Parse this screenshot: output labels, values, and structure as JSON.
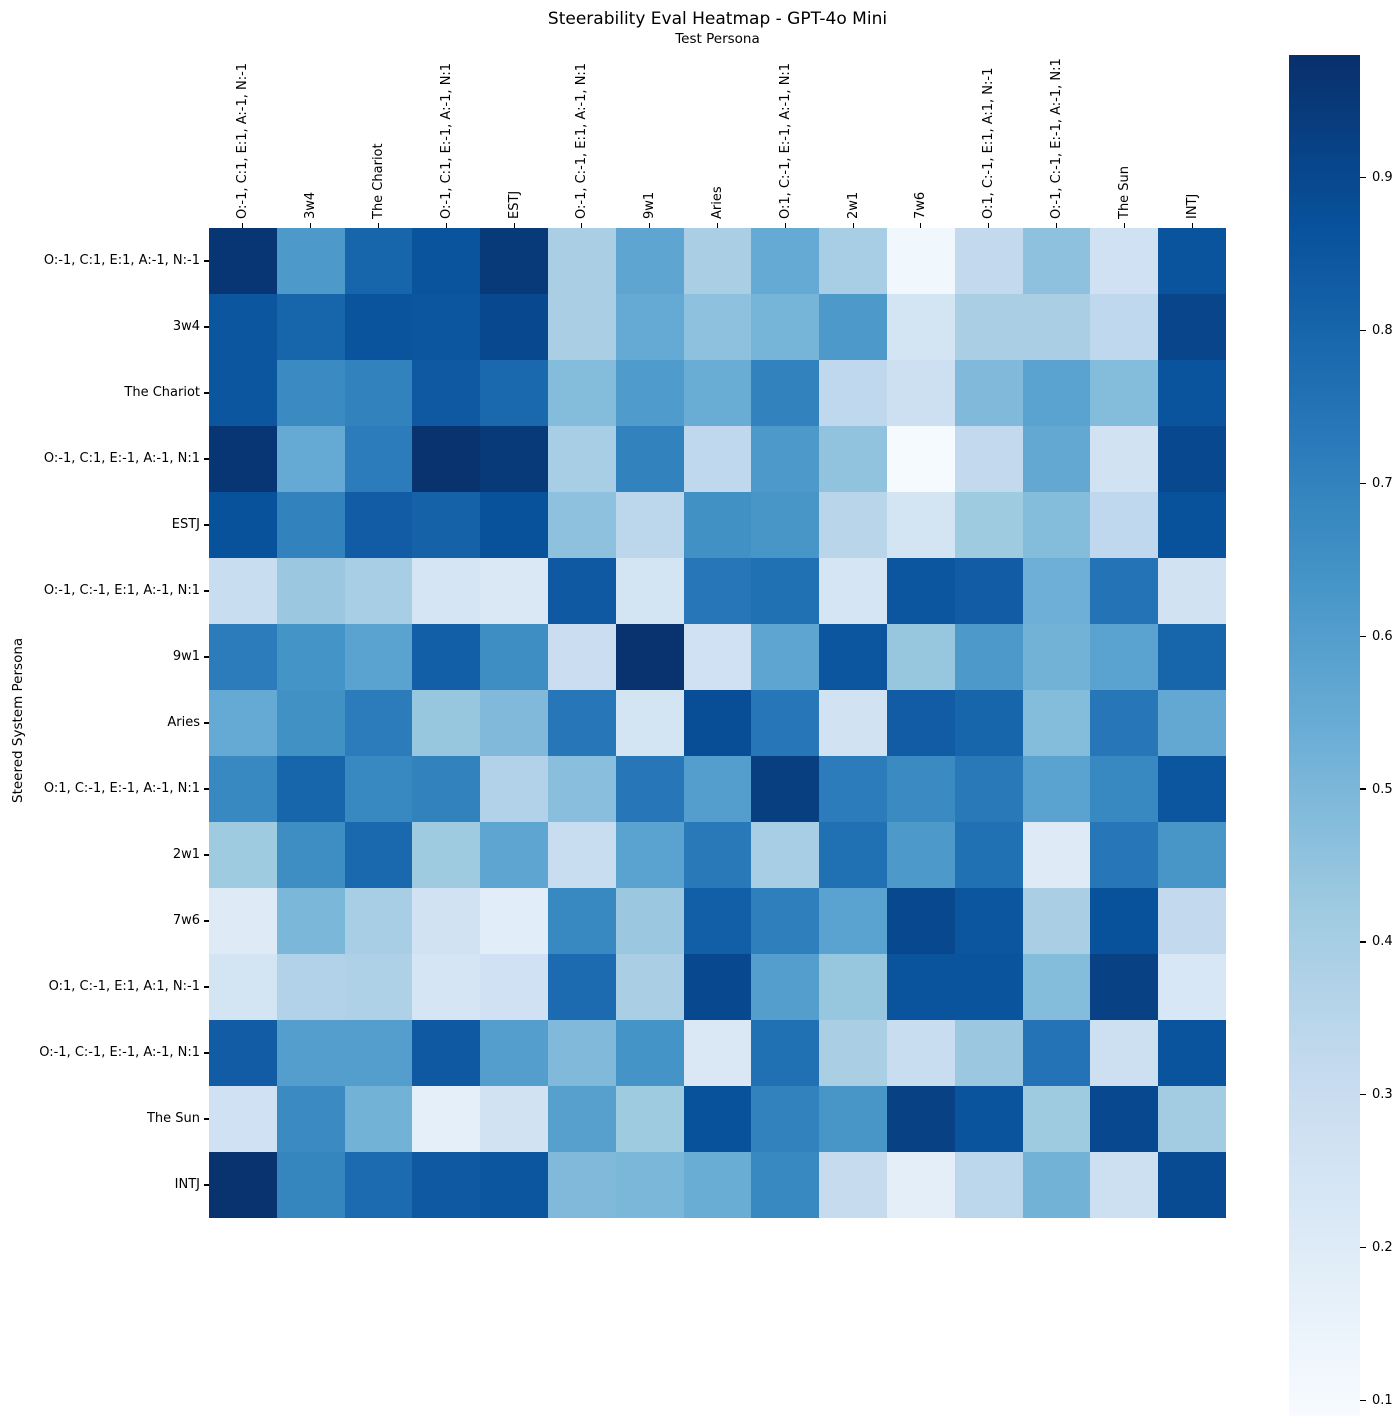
{
  "chart_data": {
    "type": "heatmap",
    "title": "Steerability Eval Heatmap - GPT-4o Mini",
    "xlabel": "Test Persona",
    "ylabel": "Steered System Persona",
    "colormap": "Blues",
    "colormap_stops": [
      [
        0.0,
        [
          247,
          251,
          255
        ]
      ],
      [
        0.125,
        [
          222,
          235,
          247
        ]
      ],
      [
        0.25,
        [
          198,
          219,
          239
        ]
      ],
      [
        0.375,
        [
          158,
          202,
          225
        ]
      ],
      [
        0.5,
        [
          107,
          174,
          214
        ]
      ],
      [
        0.625,
        [
          66,
          146,
          198
        ]
      ],
      [
        0.75,
        [
          33,
          113,
          181
        ]
      ],
      [
        0.875,
        [
          8,
          81,
          156
        ]
      ],
      [
        1.0,
        [
          8,
          48,
          107
        ]
      ]
    ],
    "vmin": 0.09,
    "vmax": 0.98,
    "colorbar_ticks": [
      0.9,
      0.8,
      0.7,
      0.6,
      0.5,
      0.4,
      0.3,
      0.2,
      0.1
    ],
    "colorbar_tick_labels": [
      "0.9",
      "0.8",
      "0.7",
      "0.6",
      "0.5",
      "0.4",
      "0.3",
      "0.2",
      "0.1"
    ],
    "columns": [
      "O:-1, C:1, E:1, A:-1, N:-1",
      "3w4",
      "The Chariot",
      "O:-1, C:1, E:-1, A:-1, N:1",
      "ESTJ",
      "O:-1, C:-1, E:1, A:-1, N:1",
      "9w1",
      "Aries",
      "O:1, C:-1, E:-1, A:-1, N:1",
      "2w1",
      "7w6",
      "O:1, C:-1, E:1, A:1, N:-1",
      "O:-1, C:-1, E:-1, A:-1, N:1",
      "The Sun",
      "INTJ"
    ],
    "rows": [
      "O:-1, C:1, E:1, A:-1, N:-1",
      "3w4",
      "The Chariot",
      "O:-1, C:1, E:-1, A:-1, N:1",
      "ESTJ",
      "O:-1, C:-1, E:1, A:-1, N:1",
      "9w1",
      "Aries",
      "O:1, C:-1, E:-1, A:-1, N:1",
      "2w1",
      "7w6",
      "O:1, C:-1, E:1, A:1, N:-1",
      "O:-1, C:-1, E:-1, A:-1, N:1",
      "The Sun",
      "INTJ"
    ],
    "values": [
      [
        0.96,
        0.62,
        0.8,
        0.86,
        0.95,
        0.39,
        0.57,
        0.39,
        0.55,
        0.4,
        0.12,
        0.32,
        0.46,
        0.27,
        0.86
      ],
      [
        0.85,
        0.8,
        0.86,
        0.85,
        0.9,
        0.39,
        0.55,
        0.46,
        0.51,
        0.62,
        0.25,
        0.39,
        0.39,
        0.33,
        0.91
      ],
      [
        0.85,
        0.67,
        0.7,
        0.84,
        0.79,
        0.48,
        0.61,
        0.54,
        0.7,
        0.33,
        0.28,
        0.49,
        0.58,
        0.48,
        0.86
      ],
      [
        0.96,
        0.55,
        0.72,
        0.97,
        0.95,
        0.4,
        0.7,
        0.33,
        0.62,
        0.45,
        0.1,
        0.32,
        0.56,
        0.26,
        0.9
      ],
      [
        0.87,
        0.7,
        0.83,
        0.81,
        0.87,
        0.46,
        0.34,
        0.65,
        0.63,
        0.35,
        0.25,
        0.42,
        0.48,
        0.33,
        0.87
      ],
      [
        0.3,
        0.43,
        0.4,
        0.24,
        0.22,
        0.84,
        0.25,
        0.74,
        0.76,
        0.24,
        0.85,
        0.83,
        0.53,
        0.75,
        0.26
      ],
      [
        0.72,
        0.64,
        0.58,
        0.82,
        0.66,
        0.29,
        0.97,
        0.27,
        0.57,
        0.85,
        0.44,
        0.62,
        0.52,
        0.58,
        0.8
      ],
      [
        0.55,
        0.65,
        0.72,
        0.44,
        0.49,
        0.74,
        0.25,
        0.88,
        0.74,
        0.26,
        0.83,
        0.8,
        0.48,
        0.74,
        0.56
      ],
      [
        0.68,
        0.8,
        0.68,
        0.7,
        0.37,
        0.47,
        0.74,
        0.6,
        0.93,
        0.72,
        0.67,
        0.73,
        0.58,
        0.68,
        0.85
      ],
      [
        0.42,
        0.66,
        0.79,
        0.42,
        0.57,
        0.3,
        0.58,
        0.73,
        0.4,
        0.76,
        0.62,
        0.76,
        0.2,
        0.74,
        0.63
      ],
      [
        0.2,
        0.5,
        0.4,
        0.26,
        0.19,
        0.68,
        0.43,
        0.82,
        0.71,
        0.58,
        0.9,
        0.85,
        0.39,
        0.87,
        0.32
      ],
      [
        0.25,
        0.37,
        0.38,
        0.24,
        0.27,
        0.78,
        0.39,
        0.9,
        0.6,
        0.44,
        0.86,
        0.86,
        0.48,
        0.92,
        0.23
      ],
      [
        0.83,
        0.6,
        0.6,
        0.84,
        0.6,
        0.49,
        0.64,
        0.22,
        0.76,
        0.39,
        0.3,
        0.43,
        0.75,
        0.28,
        0.86
      ],
      [
        0.27,
        0.67,
        0.52,
        0.17,
        0.26,
        0.59,
        0.42,
        0.87,
        0.7,
        0.63,
        0.92,
        0.86,
        0.42,
        0.9,
        0.41
      ],
      [
        0.97,
        0.69,
        0.78,
        0.84,
        0.85,
        0.49,
        0.5,
        0.54,
        0.68,
        0.31,
        0.18,
        0.34,
        0.52,
        0.28,
        0.89
      ]
    ]
  }
}
